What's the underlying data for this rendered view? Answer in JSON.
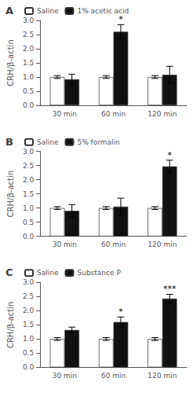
{
  "chart_data": [
    {
      "type": "bar",
      "title": "A",
      "categories": [
        "30 min",
        "60 min",
        "120 min"
      ],
      "y_label": "CRH/β-actin",
      "series": [
        {
          "name": "Saline",
          "color": "#ffffff",
          "values": [
            1.0,
            1.0,
            1.0
          ],
          "errors": [
            0.05,
            0.05,
            0.05
          ]
        },
        {
          "name": "1% acetic acid",
          "color": "#111111",
          "values": [
            0.92,
            2.6,
            1.08
          ],
          "errors": [
            0.18,
            0.25,
            0.3
          ]
        }
      ],
      "annotations": [
        {
          "category": "60 min",
          "series": "1% acetic acid",
          "text": "*"
        }
      ],
      "ylim": [
        0,
        3.0
      ],
      "yticks": [
        {
          "value": 0.0,
          "label": "0.0"
        },
        0.5,
        {
          "value": 1.0,
          "label": "1.0"
        },
        1.5,
        {
          "value": 2.0,
          "label": "2.0"
        },
        2.5,
        {
          "value": 3.0,
          "label": "3.0"
        }
      ],
      "grid": false,
      "legend": "upper left"
    },
    {
      "type": "bar",
      "title": "B",
      "categories": [
        "30 min",
        "60 min",
        "120 min"
      ],
      "y_label": "CRH/β-actin",
      "series": [
        {
          "name": "Saline",
          "color": "#ffffff",
          "values": [
            1.0,
            1.0,
            1.0
          ],
          "errors": [
            0.05,
            0.05,
            0.05
          ]
        },
        {
          "name": "5% formalin",
          "color": "#111111",
          "values": [
            0.9,
            1.05,
            2.47
          ],
          "errors": [
            0.22,
            0.3,
            0.22
          ]
        }
      ],
      "annotations": [
        {
          "category": "120 min",
          "series": "5% formalin",
          "text": "*"
        }
      ],
      "ylim": [
        0,
        3.0
      ],
      "yticks": [
        {
          "value": 0.0,
          "label": "0.0"
        },
        0.5,
        {
          "value": 1.0,
          "label": "1.0"
        },
        1.5,
        {
          "value": 2.0,
          "label": "2.0"
        },
        2.5,
        {
          "value": 3.0,
          "label": "3.0"
        }
      ],
      "grid": false,
      "legend": "upper left"
    },
    {
      "type": "bar",
      "title": "C",
      "categories": [
        "30 min",
        "60 min",
        "120 min"
      ],
      "y_label": "CRH/β-actin",
      "series": [
        {
          "name": "Saline",
          "color": "#ffffff",
          "values": [
            1.0,
            1.0,
            1.0
          ],
          "errors": [
            0.05,
            0.05,
            0.05
          ]
        },
        {
          "name": "Substance P",
          "color": "#111111",
          "values": [
            1.32,
            1.6,
            2.43
          ],
          "errors": [
            0.1,
            0.18,
            0.15
          ]
        }
      ],
      "annotations": [
        {
          "category": "60 min",
          "series": "Substance P",
          "text": "*"
        },
        {
          "category": "120 min",
          "series": "Substance P",
          "text": "***"
        }
      ],
      "ylim": [
        0,
        3.0
      ],
      "yticks": [
        {
          "value": 0.0,
          "label": "0.0"
        },
        0.5,
        {
          "value": 1.0,
          "label": "1.0"
        },
        1.5,
        {
          "value": 2.0,
          "label": "2.0"
        },
        2.5,
        {
          "value": 3.0,
          "label": "3.0"
        }
      ],
      "grid": false,
      "legend": "upper left"
    }
  ]
}
